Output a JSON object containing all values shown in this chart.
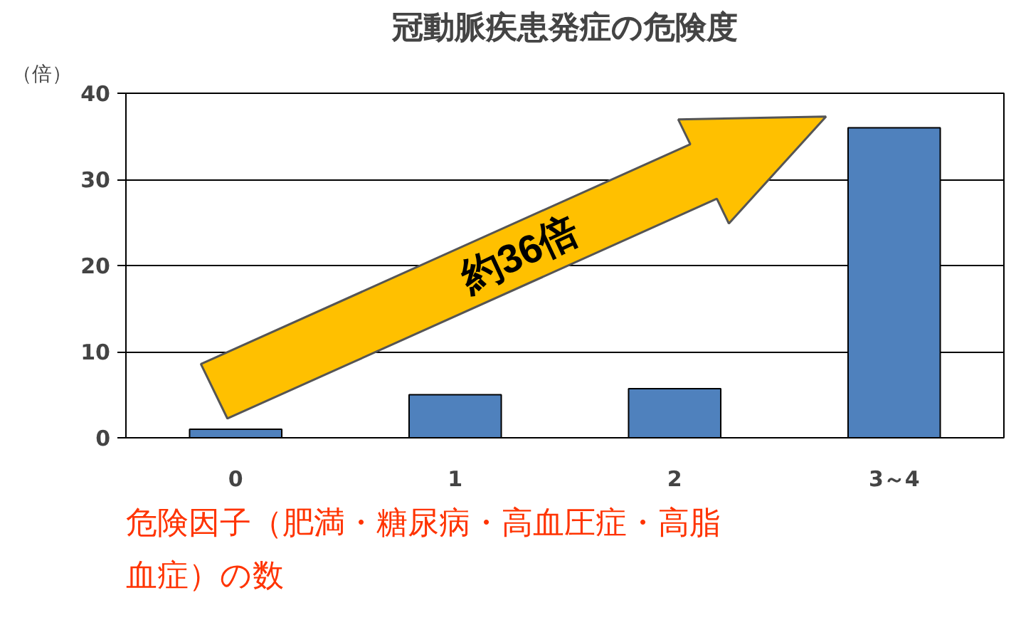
{
  "chart_data": {
    "type": "bar",
    "title": "冠動脈疾患発症の危険度",
    "ylabel": "（倍）",
    "xlabel": "危険因子（肥満・糖尿病・高血圧症・高脂血症）の数",
    "categories": [
      "0",
      "1",
      "2",
      "3～4"
    ],
    "values": [
      1,
      5,
      5.7,
      36
    ],
    "color": "#4f81bd",
    "ylim": [
      0,
      40
    ],
    "yticks": [
      0,
      10,
      20,
      30,
      40
    ],
    "grid": "y",
    "annotations": [
      "約36倍"
    ]
  }
}
